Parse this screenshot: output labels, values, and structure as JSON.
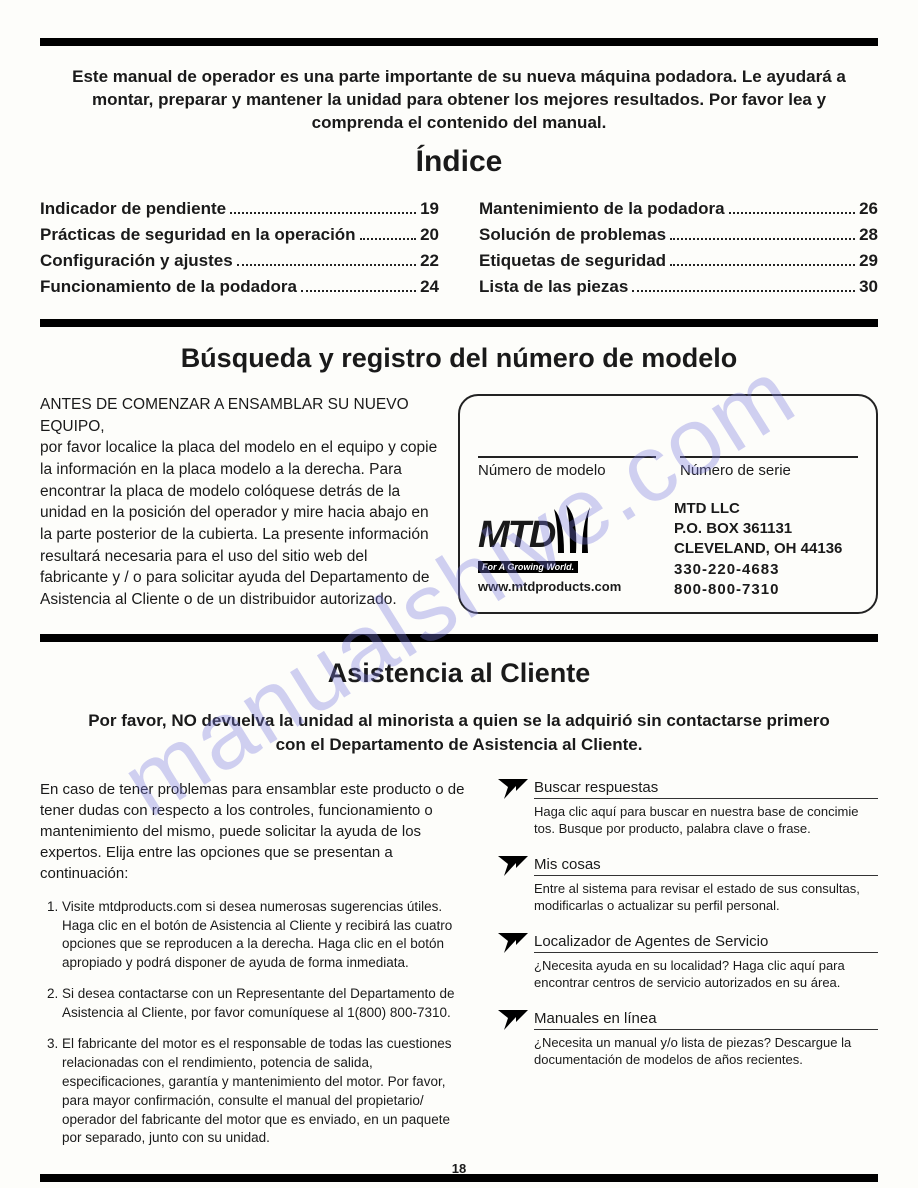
{
  "intro": "Este manual de operador es una parte importante de su nueva máquina podadora. Le ayudará a montar, preparar y mantener la unidad para obtener los mejores resultados. Por favor lea y comprenda el contenido del manual.",
  "index_title": "Índice",
  "toc_left": [
    {
      "label": "Indicador de pendiente",
      "page": "19"
    },
    {
      "label": "Prácticas de seguridad en la operación",
      "page": "20"
    },
    {
      "label": "Configuración y ajustes",
      "page": "22"
    },
    {
      "label": "Funcionamiento de la podadora",
      "page": "24"
    }
  ],
  "toc_right": [
    {
      "label": "Mantenimiento de la podadora",
      "page": "26"
    },
    {
      "label": "Solución de problemas",
      "page": "28"
    },
    {
      "label": "Etiquetas de seguridad",
      "page": "29"
    },
    {
      "label": "Lista de las piezas",
      "page": "30"
    }
  ],
  "model_section_title": "Búsqueda y registro del número de modelo",
  "model_intro_caps": "ANTES DE COMENZAR A ENSAMBLAR SU NUEVO EQUIPO,",
  "model_intro_body": "por favor localice la placa del modelo en el equipo y copie la información en la placa modelo a la derecha. Para encontrar la placa de modelo colóquese detrás de la unidad en la posición del operador y mire hacia abajo en la parte posterior de la cubierta. La presente información resultará necesaria para el uso del sitio web del fabricante y / o para solicitar ayuda del Departamento de Asistencia al Cliente o de un distribuidor autorizado.",
  "field_model": "Número de modelo",
  "field_serial": "Número de serie",
  "logo_text": "MTD",
  "logo_tagline": "For A Growing World.",
  "logo_url": "www.mtdproducts.com",
  "address": {
    "l1": "MTD LLC",
    "l2": "P.O. BOX 361131",
    "l3": "CLEVELAND, OH 44136",
    "l4": "330-220-4683",
    "l5": "800-800-7310"
  },
  "assist_title": "Asistencia al Cliente",
  "assist_subhead": "Por favor, NO devuelva la unidad al minorista a quien se la adquirió sin contactarse primero con el Departamento de Asistencia al Cliente.",
  "assist_body": "En caso de tener problemas para ensamblar este producto o de tener dudas con respecto a los controles, funcionamiento o mantenimiento del mismo,  puede solicitar la ayuda de los expertos. Elija entre las opciones que se presentan a continuación:",
  "assist_items": [
    "Visite mtdproducts.com si desea numerosas sugerencias útiles. Haga clic en el botón de Asistencia al Cliente y recibirá las cuatro opciones que se reproducen a la derecha. Haga clic en el botón apropiado y podrá disponer de ayuda de forma inmediata.",
    "Si desea contactarse con un Representante del Departamento de Asistencia al Cliente, por favor comuníquese al 1(800) 800-7310.",
    "El fabricante del motor es el responsable de todas las cuestiones relacionadas con el rendimiento, potencia de salida, especificaciones, garantía y mantenimiento del motor. Por favor, para mayor confirmación, consulte el manual del propietario/ operador del fabricante del motor que es enviado, en un paquete por separado, junto con su unidad."
  ],
  "pointers": [
    {
      "title": "Buscar respuestas",
      "desc": "Haga clic aquí para buscar en nuestra base de concimie tos. Busque por producto, palabra clave o frase."
    },
    {
      "title": "Mis cosas",
      "desc": "Entre al sistema para revisar el estado de sus consultas, modificarlas o actualizar su perfil personal."
    },
    {
      "title": "Localizador de Agentes de Servicio",
      "desc": "¿Necesita ayuda en su localidad? Haga clic aquí para encontrar centros de servicio autorizados en su área."
    },
    {
      "title": "Manuales en línea",
      "desc": "¿Necesita un manual y/o lista de piezas? Descargue la documentación de modelos de años recientes."
    }
  ],
  "watermark": "manualshive.com",
  "page_number": "18"
}
